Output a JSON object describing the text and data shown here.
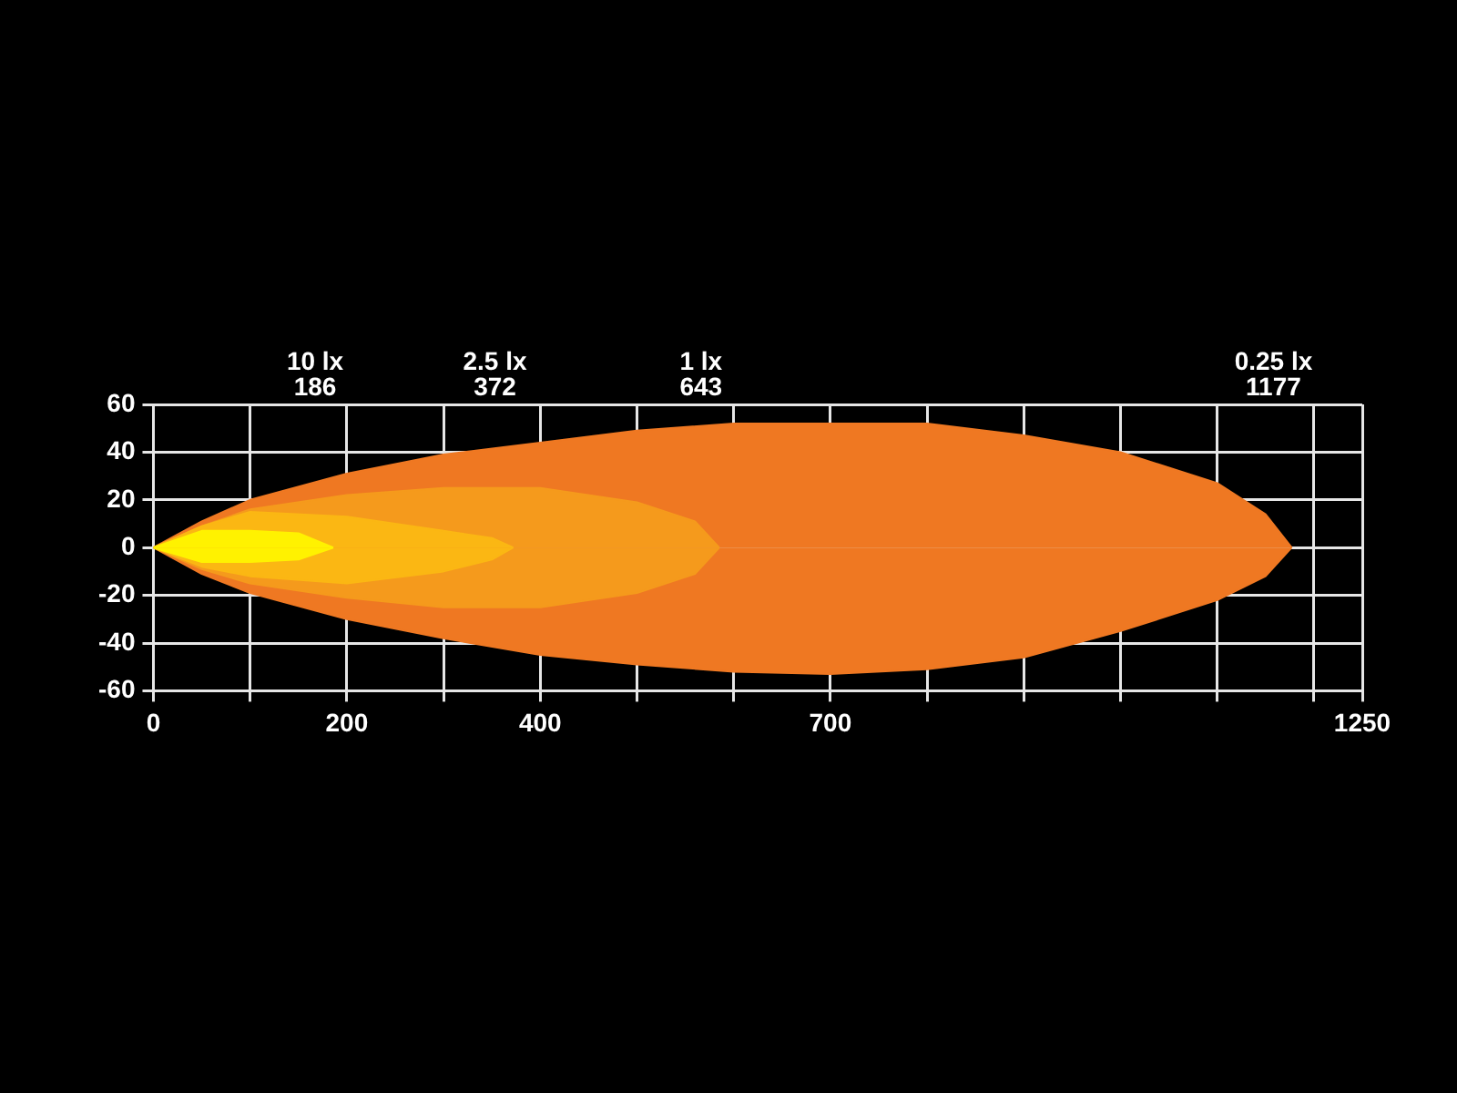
{
  "chart_data": {
    "type": "area",
    "xlim": [
      0,
      1250
    ],
    "ylim": [
      -60,
      60
    ],
    "xticks": [
      0,
      {
        "value": 100,
        "label": null
      },
      200,
      {
        "value": 300,
        "label": null
      },
      400,
      {
        "value": 500,
        "label": null
      },
      {
        "value": 600,
        "label": null
      },
      700,
      {
        "value": 800,
        "label": null
      },
      {
        "value": 900,
        "label": null
      },
      {
        "value": 1000,
        "label": null
      },
      {
        "value": 1100,
        "label": null
      },
      {
        "value": 1200,
        "label": null
      },
      1250
    ],
    "yticks": [
      -60,
      -40,
      -20,
      0,
      20,
      40,
      60
    ],
    "grid": true,
    "legend": false,
    "annotations": [
      "10 lx\n186",
      "2.5 lx\n372",
      "1 lx\n643",
      "0.25 lx\n1177"
    ],
    "series": [
      {
        "color": "#ef7822",
        "x": [
          0,
          50,
          100,
          200,
          300,
          400,
          500,
          600,
          700,
          800,
          900,
          1000,
          1100,
          1150,
          1177
        ],
        "values": [
          0,
          11,
          20,
          31,
          39,
          44,
          49,
          52,
          52,
          52,
          47,
          40,
          27,
          14,
          0
        ]
      },
      {
        "color": "#ef7822",
        "x": [
          0,
          50,
          100,
          200,
          300,
          400,
          500,
          600,
          700,
          800,
          900,
          1000,
          1100,
          1150,
          1177
        ],
        "values": [
          0,
          -11,
          -19,
          -30,
          -38,
          -45,
          -49,
          -52,
          -53,
          -51,
          -46,
          -35,
          -22,
          -12,
          0
        ]
      },
      {
        "color": "#f59a1c",
        "x": [
          0,
          50,
          100,
          200,
          300,
          400,
          500,
          560,
          585
        ],
        "values": [
          0,
          9,
          16,
          22,
          25,
          25,
          19,
          11,
          0
        ]
      },
      {
        "color": "#f59a1c",
        "x": [
          0,
          50,
          100,
          200,
          300,
          400,
          500,
          560,
          585
        ],
        "values": [
          0,
          -9,
          -15,
          -21,
          -25,
          -25,
          -19,
          -11,
          0
        ]
      },
      {
        "color": "#fbb713",
        "x": [
          0,
          50,
          100,
          200,
          300,
          350,
          372
        ],
        "values": [
          0,
          9,
          15,
          13,
          7,
          4,
          0
        ]
      },
      {
        "color": "#fbb713",
        "x": [
          0,
          50,
          100,
          200,
          300,
          350,
          372
        ],
        "values": [
          0,
          -8,
          -12,
          -15,
          -10,
          -5,
          0
        ]
      },
      {
        "color": "#fff200",
        "x": [
          0,
          50,
          100,
          150,
          186
        ],
        "values": [
          0,
          7,
          7,
          6,
          0
        ]
      },
      {
        "color": "#fff200",
        "x": [
          0,
          50,
          100,
          150,
          186
        ],
        "values": [
          0,
          -6,
          -6,
          -5,
          0
        ]
      }
    ]
  }
}
